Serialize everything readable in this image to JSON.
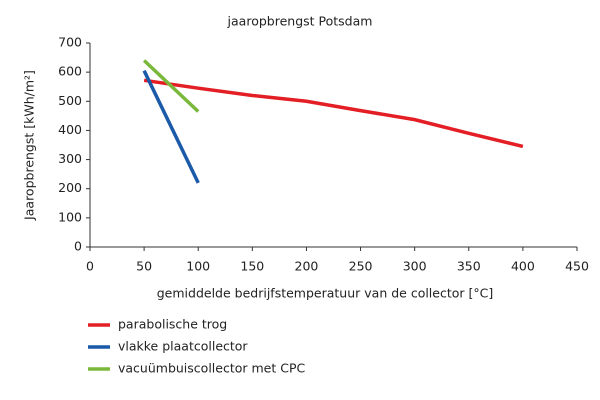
{
  "chart_data": {
    "type": "line",
    "title": "jaaropbrengst Potsdam",
    "x_label": "gemiddelde bedrijfstemperatuur van de collector [°C]",
    "y_label": "Jaaropbrengst [kWh/m²]",
    "xlim": [
      0,
      450
    ],
    "xticks": [
      0,
      50,
      100,
      150,
      200,
      250,
      300,
      350,
      400,
      450
    ],
    "ylim": [
      0,
      700
    ],
    "yticks": [
      0,
      100,
      200,
      300,
      400,
      500,
      600,
      700
    ],
    "grid": false,
    "series": [
      {
        "name": "parabolische trog",
        "color": "#e31e24",
        "x": [
          50,
          100,
          150,
          200,
          250,
          300,
          350,
          400
        ],
        "values": [
          572,
          545,
          520,
          500,
          468,
          437,
          390,
          345
        ]
      },
      {
        "name": "vlakke plaatcollector",
        "color": "#1a5aa8",
        "x": [
          50,
          100
        ],
        "values": [
          605,
          220
        ]
      },
      {
        "name": "vacuümbuiscollector met CPC",
        "color": "#7ab83c",
        "x": [
          50,
          100
        ],
        "values": [
          640,
          465
        ]
      }
    ]
  }
}
